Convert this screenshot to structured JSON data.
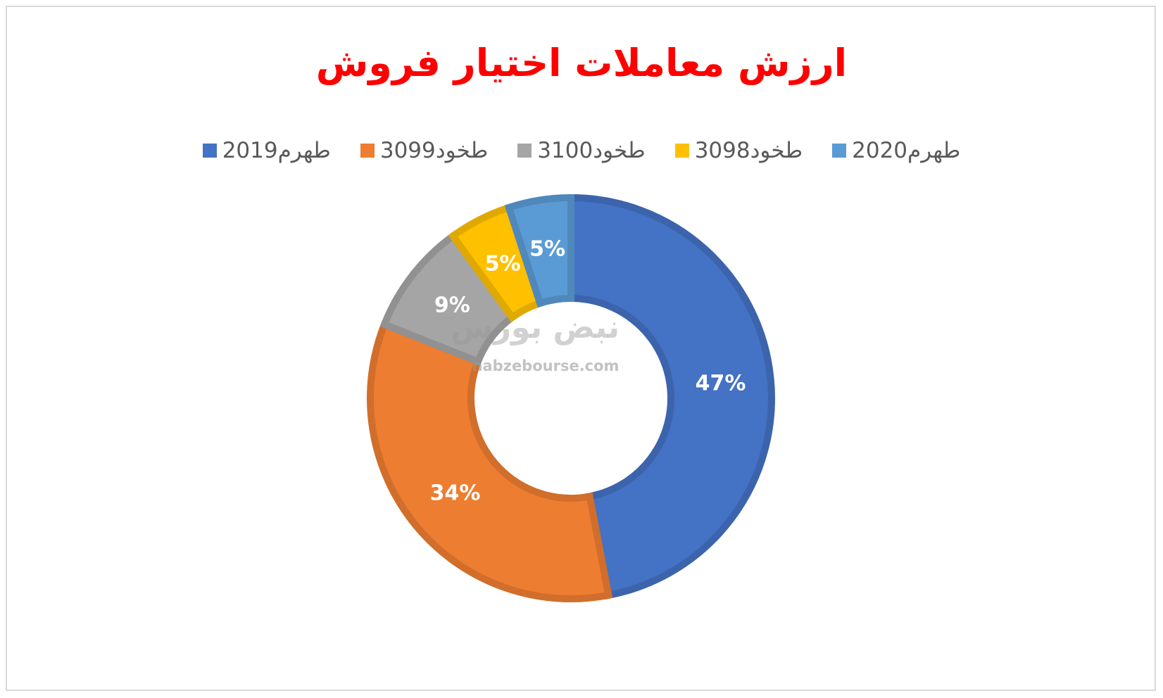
{
  "chart_data": {
    "type": "donut",
    "title": "ارزش معاملات اختیار فروش",
    "categories": [
      "طهرم2019",
      "طخود3099",
      "طخود3100",
      "طخود3098",
      "طهرم2020"
    ],
    "values": [
      47,
      34,
      9,
      5,
      5
    ],
    "value_labels": [
      "47%",
      "34%",
      "9%",
      "5%",
      "5%"
    ],
    "colors": [
      "#4472c4",
      "#ed7d31",
      "#a5a5a5",
      "#ffc000",
      "#5b9bd5"
    ],
    "legend": "top",
    "watermark": {
      "text": "نبض بورس",
      "url": "nabzebourse.com"
    }
  }
}
